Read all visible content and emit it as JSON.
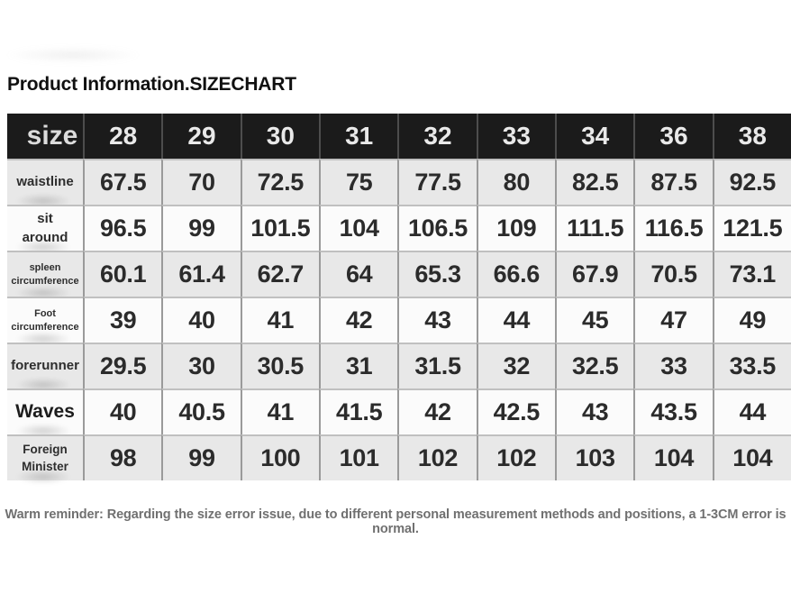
{
  "page": {
    "title": "Product Information.SIZECHART",
    "reminder": "Warm reminder: Regarding the size error issue, due to different personal measurement methods and positions, a 1-3CM error is normal."
  },
  "colors": {
    "header_bg": "#1b1b1b",
    "header_text": "#e9e9e9",
    "row_shade_bg": "#e8e8e8",
    "row_plain_bg": "#fbfbfb",
    "grid_line_vertical": "#9a9a9a",
    "grid_line_horizontal": "#c0c0c0",
    "cell_text": "#2b2b2b",
    "reminder_text": "#707070"
  },
  "chart_data": {
    "type": "table",
    "title": "Product Information.SIZECHART",
    "columns": [
      "size",
      "28",
      "29",
      "30",
      "31",
      "32",
      "33",
      "34",
      "36",
      "38"
    ],
    "rows": [
      {
        "label": "waistline",
        "values": [
          "67.5",
          "70",
          "72.5",
          "75",
          "77.5",
          "80",
          "82.5",
          "87.5",
          "92.5"
        ]
      },
      {
        "label": "sit around",
        "values": [
          "96.5",
          "99",
          "101.5",
          "104",
          "106.5",
          "109",
          "111.5",
          "116.5",
          "121.5"
        ]
      },
      {
        "label": "spleen circumference",
        "values": [
          "60.1",
          "61.4",
          "62.7",
          "64",
          "65.3",
          "66.6",
          "67.9",
          "70.5",
          "73.1"
        ]
      },
      {
        "label": "Foot circumference",
        "values": [
          "39",
          "40",
          "41",
          "42",
          "43",
          "44",
          "45",
          "47",
          "49"
        ]
      },
      {
        "label": "forerunner",
        "values": [
          "29.5",
          "30",
          "30.5",
          "31",
          "31.5",
          "32",
          "32.5",
          "33",
          "33.5"
        ]
      },
      {
        "label": "Waves",
        "values": [
          "40",
          "40.5",
          "41",
          "41.5",
          "42",
          "42.5",
          "43",
          "43.5",
          "44"
        ]
      },
      {
        "label": "Foreign Minister",
        "values": [
          "98",
          "99",
          "100",
          "101",
          "102",
          "102",
          "103",
          "104",
          "104"
        ]
      }
    ]
  }
}
